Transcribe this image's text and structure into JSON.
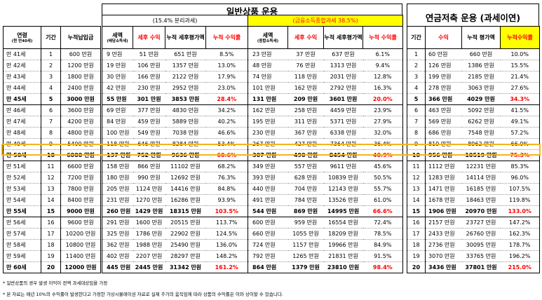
{
  "age_header": {
    "label": "연령",
    "sub": "(현 만40세)"
  },
  "period_header": "기간",
  "cumulative_header": "누적납입금",
  "general": {
    "title": "일반상품 운용",
    "sections": [
      {
        "tag": "(15.4% 분리과세)",
        "h_tax": "세액",
        "h_tax_sub": "(배당소득세)",
        "h_after": "세후 수익",
        "h_cum_after": "누적 세후평가액",
        "h_cum_rate": "누적 수익률"
      },
      {
        "tag": "(금융소득종합과세 38.5%)",
        "h_tax": "세액",
        "h_tax_sub": "(종합소득세)",
        "h_after": "세후 수익",
        "h_cum_after": "누적 세후평가액",
        "h_cum_rate": "누적 수익률"
      }
    ]
  },
  "pension": {
    "title": "연금저축 운용 (과세이연)",
    "h_period": "기간",
    "h_return": "수익",
    "h_cum_val": "누적 평가액",
    "h_cum_rate": "누적수익률"
  },
  "rows": [
    {
      "age": "만 41세",
      "n": "1",
      "paid": "600 만원",
      "t1": "9 만원",
      "a1": "51 만원",
      "c1": "651 만원",
      "r1": "8.5%",
      "t2": "23 만원",
      "a2": "37 만원",
      "c2": "637 만원",
      "r2": "6.1%",
      "pn": "1",
      "pr": "60 만원",
      "pc": "660 만원",
      "prr": "10.0%"
    },
    {
      "age": "만 42세",
      "n": "2",
      "paid": "1200 만원",
      "t1": "19 만원",
      "a1": "106 만원",
      "c1": "1357 만원",
      "r1": "13.0%",
      "t2": "48 만원",
      "a2": "76 만원",
      "c2": "1313 만원",
      "r2": "9.4%",
      "pn": "2",
      "pr": "126 만원",
      "pc": "1386 만원",
      "prr": "15.5%"
    },
    {
      "age": "만 43세",
      "n": "3",
      "paid": "1800 만원",
      "t1": "30 만원",
      "a1": "166 만원",
      "c1": "2122 만원",
      "r1": "17.9%",
      "t2": "74 만원",
      "a2": "118 만원",
      "c2": "2031 만원",
      "r2": "12.8%",
      "pn": "3",
      "pr": "199 만원",
      "pc": "2185 만원",
      "prr": "21.4%"
    },
    {
      "age": "만 44세",
      "n": "4",
      "paid": "2400 만원",
      "t1": "42 만원",
      "a1": "230 만원",
      "c1": "2952 만원",
      "r1": "23.0%",
      "t2": "101 만원",
      "a2": "162 만원",
      "c2": "2792 만원",
      "r2": "16.3%",
      "pn": "4",
      "pr": "278 만원",
      "pc": "3063 만원",
      "prr": "27.6%"
    },
    {
      "age": "만 45세",
      "n": "5",
      "paid": "3000 만원",
      "t1": "55 만원",
      "a1": "301 만원",
      "c1": "3853 만원",
      "r1": "28.4%",
      "t2": "131 만원",
      "a2": "209 만원",
      "c2": "3601 만원",
      "r2": "20.0%",
      "pn": "5",
      "pr": "366 만원",
      "pc": "4029 만원",
      "prr": "34.3%",
      "bold": true
    },
    {
      "age": "만 46세",
      "n": "6",
      "paid": "3600 만원",
      "t1": "69 만원",
      "a1": "377 만원",
      "c1": "4830 만원",
      "r1": "34.2%",
      "t2": "162 만원",
      "a2": "258 만원",
      "c2": "4459 만원",
      "r2": "23.9%",
      "pn": "6",
      "pr": "463 만원",
      "pc": "5092 만원",
      "prr": "41.5%"
    },
    {
      "age": "만 47세",
      "n": "7",
      "paid": "4200 만원",
      "t1": "84 만원",
      "a1": "459 만원",
      "c1": "5889 만원",
      "r1": "40.2%",
      "t2": "195 만원",
      "a2": "311 만원",
      "c2": "5371 만원",
      "r2": "27.9%",
      "pn": "7",
      "pr": "569 만원",
      "pc": "6262 만원",
      "prr": "49.1%"
    },
    {
      "age": "만 48세",
      "n": "8",
      "paid": "4800 만원",
      "t1": "100 만원",
      "a1": "549 만원",
      "c1": "7038 만원",
      "r1": "46.6%",
      "t2": "230 만원",
      "a2": "367 만원",
      "c2": "6338 만원",
      "r2": "32.0%",
      "pn": "8",
      "pr": "686 만원",
      "pc": "7548 만원",
      "prr": "57.2%"
    },
    {
      "age": "만 49세",
      "n": "9",
      "paid": "5400 만원",
      "t1": "118 만원",
      "a1": "646 만원",
      "c1": "8284 만원",
      "r1": "53.4%",
      "t2": "267 만원",
      "a2": "427 만원",
      "c2": "7364 만원",
      "r2": "36.4%",
      "pn": "9",
      "pr": "810 만원",
      "pc": "8962 만원",
      "prr": "66.0%"
    },
    {
      "age": "만 50세",
      "n": "10",
      "paid": "6000 만원",
      "t1": "137 만원",
      "a1": "752 만원",
      "c1": "9636 만원",
      "r1": "60.6%",
      "t2": "307 만원",
      "a2": "490 만원",
      "c2": "8454 만원",
      "r2": "40.9%",
      "pn": "10",
      "pr": "956 만원",
      "pc": "10519 만원",
      "prr": "75.3%",
      "bold": true,
      "hl": true
    },
    {
      "age": "만 51세",
      "n": "11",
      "paid": "6600 만원",
      "t1": "158 만원",
      "a1": "866 만원",
      "c1": "11102 만원",
      "r1": "68.2%",
      "t2": "349 만원",
      "a2": "557 만원",
      "c2": "9611 만원",
      "r2": "45.6%",
      "pn": "11",
      "pr": "1112 만원",
      "pc": "12231 만원",
      "prr": "85.3%"
    },
    {
      "age": "만 52세",
      "n": "12",
      "paid": "7200 만원",
      "t1": "180 만원",
      "a1": "990 만원",
      "c1": "12692 만원",
      "r1": "76.3%",
      "t2": "393 만원",
      "a2": "628 만원",
      "c2": "10839 만원",
      "r2": "50.5%",
      "pn": "12",
      "pr": "1283 만원",
      "pc": "14114 만원",
      "prr": "96.0%"
    },
    {
      "age": "만 53세",
      "n": "13",
      "paid": "7800 만원",
      "t1": "205 만원",
      "a1": "1124 만원",
      "c1": "14416 만원",
      "r1": "84.8%",
      "t2": "440 만원",
      "a2": "704 만원",
      "c2": "12143 만원",
      "r2": "55.7%",
      "pn": "13",
      "pr": "1471 만원",
      "pc": "16185 만원",
      "prr": "107.5%"
    },
    {
      "age": "만 54세",
      "n": "14",
      "paid": "8400 만원",
      "t1": "231 만원",
      "a1": "1270 만원",
      "c1": "16286 만원",
      "r1": "93.9%",
      "t2": "491 만원",
      "a2": "784 만원",
      "c2": "13526 만원",
      "r2": "61.0%",
      "pn": "14",
      "pr": "1678 만원",
      "pc": "18463 만원",
      "prr": "119.8%"
    },
    {
      "age": "만 55세",
      "n": "15",
      "paid": "9000 만원",
      "t1": "260 만원",
      "a1": "1429 만원",
      "c1": "18315 만원",
      "r1": "103.5%",
      "t2": "544 만원",
      "a2": "869 만원",
      "c2": "14995 만원",
      "r2": "66.6%",
      "pn": "15",
      "pr": "1906 만원",
      "pc": "20970 만원",
      "prr": "133.0%",
      "bold": true
    },
    {
      "age": "만 56세",
      "n": "16",
      "paid": "9600 만원",
      "t1": "291 만원",
      "a1": "1600 만원",
      "c1": "20515 만원",
      "r1": "113.7%",
      "t2": "600 만원",
      "a2": "959 만원",
      "c2": "16554 만원",
      "r2": "72.4%",
      "pn": "16",
      "pr": "2157 만원",
      "pc": "23727 만원",
      "prr": "147.2%"
    },
    {
      "age": "만 57세",
      "n": "17",
      "paid": "10200 만원",
      "t1": "325 만원",
      "a1": "1786 만원",
      "c1": "22902 만원",
      "r1": "124.5%",
      "t2": "660 만원",
      "a2": "1055 만원",
      "c2": "18209 만원",
      "r2": "78.5%",
      "pn": "17",
      "pr": "2433 만원",
      "pc": "26760 만원",
      "prr": "162.3%"
    },
    {
      "age": "만 58세",
      "n": "18",
      "paid": "10800 만원",
      "t1": "362 만원",
      "a1": "1988 만원",
      "c1": "25490 만원",
      "r1": "136.0%",
      "t2": "724 만원",
      "a2": "1157 만원",
      "c2": "19966 만원",
      "r2": "84.9%",
      "pn": "18",
      "pr": "2736 만원",
      "pc": "30095 만원",
      "prr": "178.7%"
    },
    {
      "age": "만 59세",
      "n": "19",
      "paid": "11400 만원",
      "t1": "402 만원",
      "a1": "2207 만원",
      "c1": "28297 만원",
      "r1": "148.2%",
      "t2": "792 만원",
      "a2": "1265 만원",
      "c2": "21831 만원",
      "r2": "91.5%",
      "pn": "19",
      "pr": "3070 만원",
      "pc": "33765 만원",
      "prr": "196.2%"
    },
    {
      "age": "만 60세",
      "n": "20",
      "paid": "12000 만원",
      "t1": "445 만원",
      "a1": "2445 만원",
      "c1": "31342 만원",
      "r1": "161.2%",
      "t2": "864 만원",
      "a2": "1379 만원",
      "c2": "23810 만원",
      "r2": "98.4%",
      "pn": "20",
      "pr": "3436 만원",
      "pc": "37801 만원",
      "prr": "215.0%",
      "bold": true
    }
  ],
  "footnotes": [
    "* 일반상품의 경우 발생 이익이 전액 과세대상임을 가정",
    "* 본 자료는 매년 10%의 수익률이 발생한다고 가정한 가상시뮬레이션 자료로 실제 주가의 움직임에 따라 상품의 수익률은 이와 상이할 수 있습니다."
  ],
  "colors": {
    "red": "#ff0000",
    "yellow": "#ffff00",
    "highlight": "#f3b51c",
    "header_bg": "#ffffff"
  }
}
